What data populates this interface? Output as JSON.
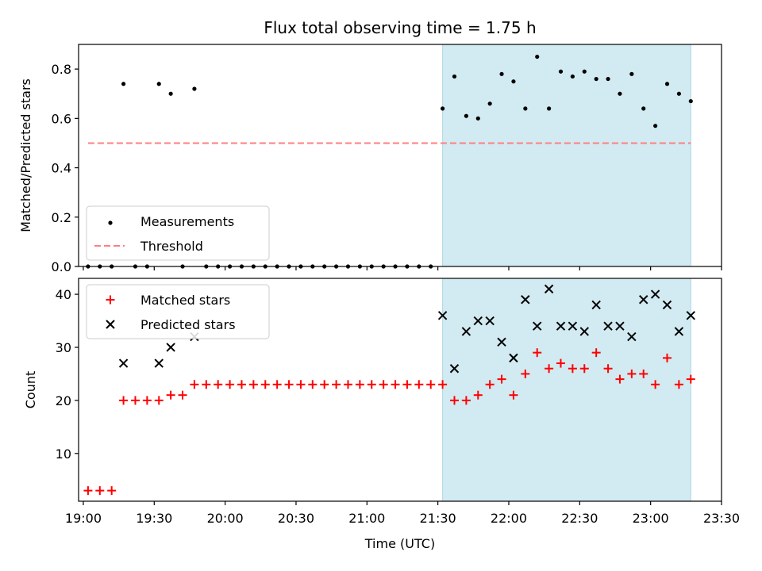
{
  "title": "Flux total observing time = 1.75 h",
  "xlabel": "Time (UTC)",
  "x_tick_labels": [
    "19:00",
    "19:30",
    "20:00",
    "20:30",
    "21:00",
    "21:30",
    "22:00",
    "22:30",
    "23:00",
    "23:30"
  ],
  "colors": {
    "shaded": "#add8e6",
    "threshold": "#ff7f7f",
    "measurements": "#000000",
    "matched": "#ff0000",
    "predicted": "#000000"
  },
  "chart_data": [
    {
      "type": "scatter",
      "ylabel": "Matched/Predicted stars",
      "xlim": [
        "18:58",
        "23:30"
      ],
      "ylim": [
        0,
        0.9
      ],
      "y_ticks": [
        0.0,
        0.2,
        0.4,
        0.6,
        0.8
      ],
      "shaded_region": [
        "21:32",
        "23:17"
      ],
      "legend": {
        "position": "lower-left",
        "entries": [
          "Measurements",
          "Threshold"
        ]
      },
      "series": [
        {
          "name": "Measurements",
          "marker": "dot",
          "x": [
            "19:02",
            "19:07",
            "19:12",
            "19:17",
            "19:22",
            "19:27",
            "19:32",
            "19:37",
            "19:42",
            "19:47",
            "19:52",
            "19:57",
            "20:02",
            "20:07",
            "20:12",
            "20:17",
            "20:22",
            "20:27",
            "20:32",
            "20:37",
            "20:42",
            "20:47",
            "20:52",
            "20:57",
            "21:02",
            "21:07",
            "21:12",
            "21:17",
            "21:22",
            "21:27",
            "21:32",
            "21:37",
            "21:42",
            "21:47",
            "21:52",
            "21:57",
            "22:02",
            "22:07",
            "22:12",
            "22:17",
            "22:22",
            "22:27",
            "22:32",
            "22:37",
            "22:42",
            "22:47",
            "22:52",
            "22:57",
            "23:02",
            "23:07",
            "23:12",
            "23:17"
          ],
          "y": [
            0,
            0,
            0,
            0.74,
            0,
            0,
            0.74,
            0.7,
            0,
            0.72,
            0,
            0,
            0,
            0,
            0,
            0,
            0,
            0,
            0,
            0,
            0,
            0,
            0,
            0,
            0,
            0,
            0,
            0,
            0,
            0,
            0.64,
            0.77,
            0.61,
            0.6,
            0.66,
            0.78,
            0.75,
            0.64,
            0.85,
            0.64,
            0.79,
            0.77,
            0.79,
            0.76,
            0.76,
            0.7,
            0.78,
            0.64,
            0.57,
            0.74,
            0.7,
            0.67
          ]
        },
        {
          "name": "Threshold",
          "type": "line",
          "style": "dashed",
          "x": [
            "19:02",
            "23:17"
          ],
          "y": [
            0.5,
            0.5
          ]
        }
      ]
    },
    {
      "type": "scatter",
      "ylabel": "Count",
      "xlim": [
        "18:58",
        "23:30"
      ],
      "ylim": [
        1,
        43
      ],
      "y_ticks": [
        10,
        20,
        30,
        40
      ],
      "shaded_region": [
        "21:32",
        "23:17"
      ],
      "legend": {
        "position": "top-left",
        "entries": [
          "Matched stars",
          "Predicted stars"
        ]
      },
      "series": [
        {
          "name": "Matched stars",
          "marker": "plus",
          "x": [
            "19:02",
            "19:07",
            "19:12",
            "19:17",
            "19:22",
            "19:27",
            "19:32",
            "19:37",
            "19:42",
            "19:47",
            "19:52",
            "19:57",
            "20:02",
            "20:07",
            "20:12",
            "20:17",
            "20:22",
            "20:27",
            "20:32",
            "20:37",
            "20:42",
            "20:47",
            "20:52",
            "20:57",
            "21:02",
            "21:07",
            "21:12",
            "21:17",
            "21:22",
            "21:27",
            "21:32",
            "21:37",
            "21:42",
            "21:47",
            "21:52",
            "21:57",
            "22:02",
            "22:07",
            "22:12",
            "22:17",
            "22:22",
            "22:27",
            "22:32",
            "22:37",
            "22:42",
            "22:47",
            "22:52",
            "22:57",
            "23:02",
            "23:07",
            "23:12",
            "23:17"
          ],
          "y": [
            3,
            3,
            3,
            20,
            20,
            20,
            20,
            21,
            21,
            23,
            23,
            23,
            23,
            23,
            23,
            23,
            23,
            23,
            23,
            23,
            23,
            23,
            23,
            23,
            23,
            23,
            23,
            23,
            23,
            23,
            23,
            20,
            20,
            21,
            23,
            24,
            21,
            25,
            29,
            26,
            27,
            26,
            26,
            29,
            26,
            24,
            25,
            25,
            23,
            28,
            23,
            24
          ]
        },
        {
          "name": "Predicted stars",
          "marker": "x",
          "x": [
            "19:17",
            "19:32",
            "19:37",
            "19:47",
            "21:32",
            "21:37",
            "21:42",
            "21:47",
            "21:52",
            "21:57",
            "22:02",
            "22:07",
            "22:12",
            "22:17",
            "22:22",
            "22:27",
            "22:32",
            "22:37",
            "22:42",
            "22:47",
            "22:52",
            "22:57",
            "23:02",
            "23:07",
            "23:12",
            "23:17"
          ],
          "y": [
            27,
            27,
            30,
            32,
            36,
            26,
            33,
            35,
            35,
            31,
            28,
            39,
            34,
            41,
            34,
            34,
            33,
            38,
            34,
            34,
            32,
            39,
            40,
            38,
            33,
            36
          ]
        }
      ]
    }
  ]
}
